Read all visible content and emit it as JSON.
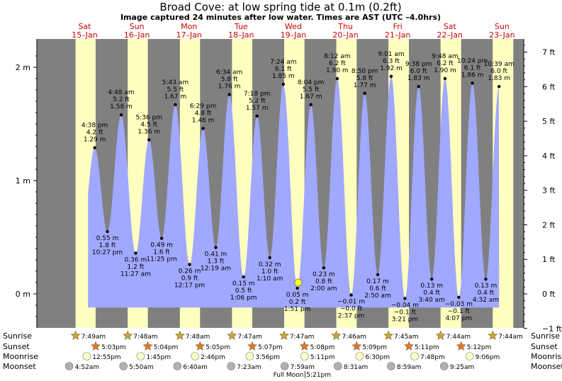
{
  "chart_data": {
    "type": "area",
    "title": "Broad Cove: at low  spring tide at 0.1m (0.2ft)",
    "subtitle": "Image captured 24 minutes after low water. Times are AST (UTC –4.0hrs)",
    "left_axis": {
      "unit": "m",
      "ylim": [
        -0.3,
        2.25
      ],
      "ticks": [
        "0 m",
        "1 m",
        "2 m"
      ],
      "tick_values": [
        0,
        1,
        2
      ]
    },
    "right_axis": {
      "unit": "ft",
      "ticks": [
        "−1 ft",
        "0 ft",
        "1 ft",
        "2 ft",
        "3 ft",
        "4 ft",
        "5 ft",
        "6 ft",
        "7 ft"
      ],
      "tick_values": [
        -1,
        0,
        1,
        2,
        3,
        4,
        5,
        6,
        7
      ]
    },
    "time_range_hours": [
      -10,
      214
    ],
    "days": [
      {
        "day": "Sat",
        "date": "15–Jan"
      },
      {
        "day": "Sun",
        "date": "16–Jan"
      },
      {
        "day": "Mon",
        "date": "17–Jan"
      },
      {
        "day": "Tue",
        "date": "18–Jan"
      },
      {
        "day": "Wed",
        "date": "19–Jan"
      },
      {
        "day": "Thu",
        "date": "20–Jan"
      },
      {
        "day": "Fri",
        "date": "21–Jan"
      },
      {
        "day": "Sat",
        "date": "22–Jan"
      },
      {
        "day": "Sun",
        "date": "23–Jan"
      }
    ],
    "daylight": [
      {
        "sunrise_h": 7.817,
        "sunset_h": 17.05
      },
      {
        "sunrise_h": 31.8,
        "sunset_h": 41.067
      },
      {
        "sunrise_h": 55.8,
        "sunset_h": 65.083
      },
      {
        "sunrise_h": 79.783,
        "sunset_h": 89.117
      },
      {
        "sunrise_h": 103.783,
        "sunset_h": 113.133
      },
      {
        "sunrise_h": 127.767,
        "sunset_h": 137.15
      },
      {
        "sunrise_h": 151.75,
        "sunset_h": 161.183
      },
      {
        "sunrise_h": 175.733,
        "sunset_h": 185.2
      },
      {
        "sunrise_h": 199.733,
        "sunset_h": 209.2
      }
    ],
    "tide_events": [
      {
        "h": 16.633,
        "m": 1.29,
        "lines": [
          "4:38 pm",
          "4.2 ft",
          "1.29 m"
        ],
        "high": true
      },
      {
        "h": 22.45,
        "m": 0.55,
        "lines": [
          "0.55 m",
          "1.8 ft",
          "10:27 pm"
        ],
        "high": false
      },
      {
        "h": 28.8,
        "m": 1.58,
        "lines": [
          "4:48 am",
          "5.2 ft",
          "1.58 m"
        ],
        "high": true
      },
      {
        "h": 35.45,
        "m": 0.36,
        "lines": [
          "0.36 m",
          "1.2 ft",
          "11:27 am"
        ],
        "high": false
      },
      {
        "h": 41.6,
        "m": 1.36,
        "lines": [
          "5:36 pm",
          "4.5 ft",
          "1.36 m"
        ],
        "high": true
      },
      {
        "h": 47.417,
        "m": 0.49,
        "lines": [
          "0.49 m",
          "1.6 ft",
          "11:25 pm"
        ],
        "high": false
      },
      {
        "h": 53.717,
        "m": 1.67,
        "lines": [
          "5:43 am",
          "5.5 ft",
          "1.67 m"
        ],
        "high": true
      },
      {
        "h": 60.283,
        "m": 0.26,
        "lines": [
          "0.26 m",
          "0.9 ft",
          "12:17 pm"
        ],
        "high": false
      },
      {
        "h": 66.483,
        "m": 1.46,
        "lines": [
          "6:29 pm",
          "4.8 ft",
          "1.46 m"
        ],
        "high": true
      },
      {
        "h": 72.317,
        "m": 0.41,
        "lines": [
          "0.41 m",
          "1.3 ft",
          "12:19 am"
        ],
        "high": false
      },
      {
        "h": 78.567,
        "m": 1.76,
        "lines": [
          "6:34 am",
          "5.8 ft",
          "1.76 m"
        ],
        "high": true
      },
      {
        "h": 85.1,
        "m": 0.15,
        "lines": [
          "0.15 m",
          "0.5 ft",
          "1:06 pm"
        ],
        "high": false
      },
      {
        "h": 91.3,
        "m": 1.57,
        "lines": [
          "7:18 pm",
          "5.2 ft",
          "1.57 m"
        ],
        "high": true
      },
      {
        "h": 97.167,
        "m": 0.32,
        "lines": [
          "0.32 m",
          "1.0 ft",
          "1:10 am"
        ],
        "high": false
      },
      {
        "h": 103.4,
        "m": 1.85,
        "lines": [
          "7:24 am",
          "6.1 ft",
          "1.85 m"
        ],
        "high": true
      },
      {
        "h": 109.85,
        "m": 0.05,
        "lines": [
          "0.05 m",
          "0.2 ft",
          "1:51 pm"
        ],
        "high": false
      },
      {
        "h": 116.067,
        "m": 1.67,
        "lines": [
          "8:04 pm",
          "5.5 ft",
          "1.67 m"
        ],
        "high": true
      },
      {
        "h": 122.0,
        "m": 0.23,
        "lines": [
          "0.23 m",
          "0.8 ft",
          "2:00 am"
        ],
        "high": false
      },
      {
        "h": 128.2,
        "m": 1.9,
        "lines": [
          "8:12 am",
          "6.2 ft",
          "1.90 m"
        ],
        "high": true
      },
      {
        "h": 134.617,
        "m": -0.01,
        "lines": [
          "−0.01 m",
          "−0.0 ft",
          "2:37 pm"
        ],
        "high": false
      },
      {
        "h": 140.833,
        "m": 1.77,
        "lines": [
          "8:50 pm",
          "5.8 ft",
          "1.77 m"
        ],
        "high": true
      },
      {
        "h": 146.833,
        "m": 0.17,
        "lines": [
          "0.17 m",
          "0.6 ft",
          "2:50 am"
        ],
        "high": false
      },
      {
        "h": 153.017,
        "m": 1.92,
        "lines": [
          "9:01 am",
          "6.3 ft",
          "1.92 m"
        ],
        "high": true
      },
      {
        "h": 159.35,
        "m": -0.04,
        "lines": [
          "−0.04 m",
          "−0.1 ft",
          "3:21 pm"
        ],
        "high": false
      },
      {
        "h": 165.633,
        "m": 1.83,
        "lines": [
          "9:38 pm",
          "6.0 ft",
          "1.83 m"
        ],
        "high": true
      },
      {
        "h": 171.667,
        "m": 0.13,
        "lines": [
          "0.13 m",
          "0.4 ft",
          "3:40 am"
        ],
        "high": false
      },
      {
        "h": 177.8,
        "m": 1.9,
        "lines": [
          "9:48 am",
          "6.2 ft",
          "1.90 m"
        ],
        "high": true
      },
      {
        "h": 184.117,
        "m": -0.03,
        "lines": [
          "−0.03 m",
          "−0.1 ft",
          "4:07 pm"
        ],
        "high": false
      },
      {
        "h": 190.4,
        "m": 1.86,
        "lines": [
          "10:24 pm",
          "6.1 ft",
          "1.86 m"
        ],
        "high": true
      },
      {
        "h": 196.533,
        "m": 0.13,
        "lines": [
          "0.13 m",
          "0.4 ft",
          "4:32 am"
        ],
        "high": false
      },
      {
        "h": 202.65,
        "m": 1.83,
        "lines": [
          "10:39 am",
          "6.0 ft",
          "1.83 m"
        ],
        "high": true
      }
    ],
    "current": {
      "h": 110.25,
      "m": 0.1
    },
    "rows": {
      "sunrise": {
        "label": "Sunrise",
        "times": [
          "7:49am",
          "7:48am",
          "7:48am",
          "7:47am",
          "7:47am",
          "7:46am",
          "7:45am",
          "7:44am",
          "7:44am"
        ]
      },
      "sunset": {
        "label": "Sunset",
        "times": [
          "5:03pm",
          "5:04pm",
          "5:05pm",
          "5:07pm",
          "5:08pm",
          "5:09pm",
          "5:11pm",
          "5:12pm"
        ]
      },
      "moonrise": {
        "label": "Moonrise",
        "times": [
          "12:55pm",
          "1:45pm",
          "2:46pm",
          "3:56pm",
          "5:11pm",
          "6:30pm",
          "7:48pm",
          "9:06pm"
        ]
      },
      "moonset": {
        "label": "Moonset",
        "times": [
          "4:52am",
          "5:50am",
          "6:40am",
          "7:23am",
          "7:59am",
          "8:31am",
          "8:59am",
          "9:25am"
        ]
      }
    },
    "full_moon": "Full Moon",
    "full_moon_time": "5:21pm",
    "colors": {
      "night": "#808080",
      "day": "#ffffc0",
      "water": "#a0a8ff",
      "dot": "#000000",
      "day_label": "#cc0000",
      "current": "#ffff40",
      "sun": "#c8a830",
      "sunset": "#e07830",
      "moonrise": "#ffffc8",
      "moonset": "#b0b0b0"
    }
  }
}
